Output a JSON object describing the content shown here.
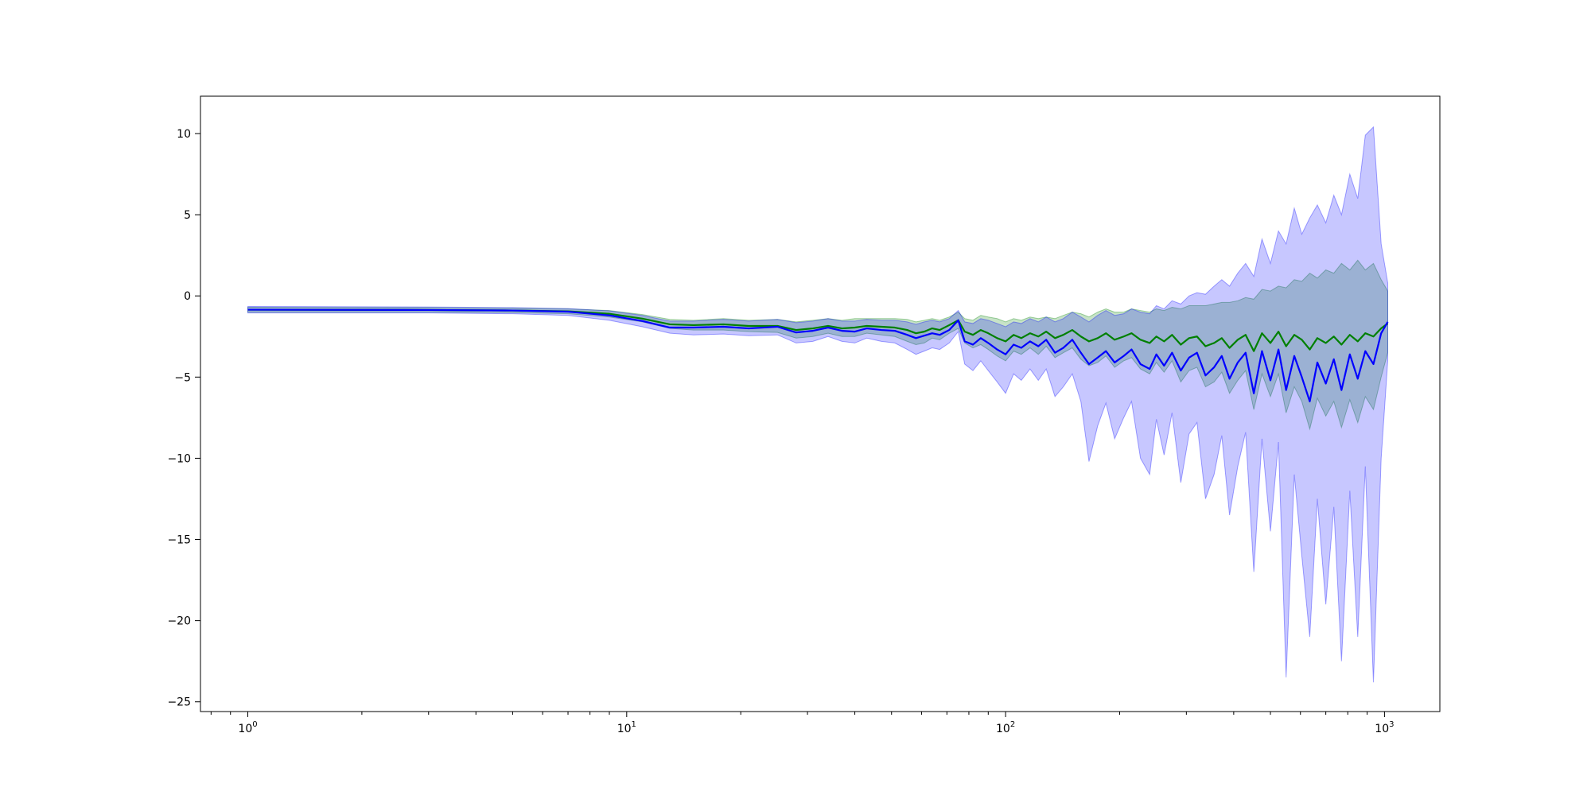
{
  "chart_data": {
    "type": "line",
    "title": "",
    "xlabel": "",
    "ylabel": "",
    "xscale": "log",
    "xlim": [
      0.75,
      1400
    ],
    "ylim": [
      -25.6,
      12.3
    ],
    "grid": false,
    "legend": "none",
    "x_ticks": [
      {
        "value": 1,
        "base": "10",
        "exp": "0"
      },
      {
        "value": 10,
        "base": "10",
        "exp": "1"
      },
      {
        "value": 100,
        "base": "10",
        "exp": "2"
      },
      {
        "value": 1000,
        "base": "10",
        "exp": "3"
      }
    ],
    "y_ticks": [
      {
        "value": 10,
        "label": "10"
      },
      {
        "value": 5,
        "label": "5"
      },
      {
        "value": 0,
        "label": "0"
      },
      {
        "value": -5,
        "label": "−5"
      },
      {
        "value": -10,
        "label": "−10"
      },
      {
        "value": -15,
        "label": "−15"
      },
      {
        "value": -20,
        "label": "−20"
      },
      {
        "value": -25,
        "label": "−25"
      }
    ],
    "x": [
      1,
      3,
      5,
      7,
      9,
      11,
      13,
      15,
      18,
      21,
      25,
      28,
      31,
      34,
      37,
      40,
      43,
      47,
      51,
      55,
      58,
      61,
      64,
      67,
      71,
      75,
      78,
      82,
      86,
      90,
      95,
      100,
      105,
      110,
      116,
      122,
      128,
      135,
      142,
      150,
      158,
      166,
      175,
      184,
      194,
      205,
      215,
      227,
      240,
      250,
      262,
      275,
      290,
      305,
      320,
      337,
      355,
      372,
      390,
      410,
      430,
      452,
      475,
      500,
      525,
      550,
      578,
      605,
      635,
      665,
      700,
      735,
      770,
      810,
      850,
      890,
      935,
      980,
      1020
    ],
    "series": [
      {
        "color": "#008000",
        "band_color": "#008000",
        "band_opacity": 0.22,
        "values": [
          -0.85,
          -0.87,
          -0.9,
          -0.95,
          -1.1,
          -1.4,
          -1.75,
          -1.8,
          -1.75,
          -1.85,
          -1.85,
          -2.1,
          -2.0,
          -1.85,
          -2.0,
          -1.95,
          -1.85,
          -1.9,
          -1.95,
          -2.1,
          -2.3,
          -2.2,
          -2.0,
          -2.1,
          -1.8,
          -1.5,
          -2.2,
          -2.4,
          -2.1,
          -2.3,
          -2.6,
          -2.8,
          -2.4,
          -2.6,
          -2.3,
          -2.5,
          -2.2,
          -2.6,
          -2.4,
          -2.1,
          -2.5,
          -2.8,
          -2.6,
          -2.3,
          -2.7,
          -2.5,
          -2.3,
          -2.7,
          -2.9,
          -2.5,
          -2.8,
          -2.4,
          -3.0,
          -2.6,
          -2.5,
          -3.1,
          -2.9,
          -2.6,
          -3.2,
          -2.7,
          -2.4,
          -3.4,
          -2.3,
          -2.9,
          -2.2,
          -3.1,
          -2.4,
          -2.7,
          -3.3,
          -2.6,
          -2.9,
          -2.5,
          -3.0,
          -2.4,
          -2.8,
          -2.3,
          -2.5,
          -2.0,
          -1.7
        ],
        "lower": [
          -1.0,
          -1.0,
          -1.03,
          -1.1,
          -1.3,
          -1.6,
          -2.0,
          -2.1,
          -2.1,
          -2.2,
          -2.25,
          -2.6,
          -2.5,
          -2.3,
          -2.5,
          -2.5,
          -2.3,
          -2.4,
          -2.5,
          -2.8,
          -3.0,
          -2.9,
          -2.6,
          -2.7,
          -2.3,
          -2.0,
          -2.9,
          -3.2,
          -3.0,
          -3.3,
          -3.7,
          -4.0,
          -3.4,
          -3.6,
          -3.2,
          -3.6,
          -3.1,
          -3.8,
          -3.5,
          -3.2,
          -3.9,
          -4.3,
          -4.1,
          -3.7,
          -4.4,
          -4.0,
          -3.8,
          -4.5,
          -4.8,
          -4.1,
          -4.7,
          -4.0,
          -5.3,
          -4.6,
          -4.4,
          -5.6,
          -5.3,
          -4.7,
          -6.0,
          -5.2,
          -4.6,
          -7.0,
          -4.8,
          -6.2,
          -4.8,
          -7.2,
          -5.6,
          -6.5,
          -8.2,
          -6.3,
          -7.4,
          -6.5,
          -8.1,
          -6.4,
          -7.8,
          -6.2,
          -7.0,
          -5.0,
          -3.5
        ],
        "upper": [
          -0.7,
          -0.72,
          -0.75,
          -0.8,
          -0.9,
          -1.15,
          -1.45,
          -1.5,
          -1.4,
          -1.5,
          -1.45,
          -1.6,
          -1.5,
          -1.4,
          -1.5,
          -1.4,
          -1.4,
          -1.4,
          -1.4,
          -1.45,
          -1.6,
          -1.5,
          -1.4,
          -1.5,
          -1.3,
          -1.0,
          -1.4,
          -1.5,
          -1.2,
          -1.3,
          -1.4,
          -1.6,
          -1.4,
          -1.5,
          -1.3,
          -1.4,
          -1.3,
          -1.4,
          -1.2,
          -1.0,
          -1.1,
          -1.3,
          -1.0,
          -0.8,
          -1.0,
          -1.0,
          -0.8,
          -0.9,
          -1.0,
          -0.8,
          -0.9,
          -0.7,
          -0.8,
          -0.6,
          -0.6,
          -0.6,
          -0.5,
          -0.4,
          -0.4,
          -0.3,
          -0.1,
          -0.2,
          0.4,
          0.3,
          0.6,
          0.5,
          1.0,
          0.9,
          1.4,
          1.1,
          1.6,
          1.4,
          2.0,
          1.6,
          2.2,
          1.6,
          2.0,
          1.0,
          0.3
        ]
      },
      {
        "color": "#0000ff",
        "band_color": "#0000ff",
        "band_opacity": 0.22,
        "values": [
          -0.85,
          -0.87,
          -0.9,
          -0.97,
          -1.2,
          -1.55,
          -1.95,
          -1.95,
          -1.9,
          -2.0,
          -1.9,
          -2.25,
          -2.15,
          -1.95,
          -2.15,
          -2.2,
          -2.0,
          -2.1,
          -2.15,
          -2.4,
          -2.6,
          -2.45,
          -2.3,
          -2.4,
          -2.1,
          -1.5,
          -2.8,
          -3.0,
          -2.6,
          -2.9,
          -3.3,
          -3.6,
          -3.0,
          -3.2,
          -2.8,
          -3.1,
          -2.7,
          -3.5,
          -3.2,
          -2.7,
          -3.5,
          -4.2,
          -3.8,
          -3.4,
          -4.1,
          -3.7,
          -3.3,
          -4.2,
          -4.5,
          -3.6,
          -4.3,
          -3.5,
          -4.6,
          -3.8,
          -3.5,
          -4.9,
          -4.4,
          -3.7,
          -5.1,
          -4.1,
          -3.5,
          -6.0,
          -3.4,
          -5.2,
          -3.3,
          -5.8,
          -3.7,
          -5.0,
          -6.5,
          -4.1,
          -5.4,
          -3.9,
          -5.8,
          -3.6,
          -5.1,
          -3.4,
          -4.2,
          -2.3,
          -1.6
        ],
        "lower": [
          -1.05,
          -1.05,
          -1.1,
          -1.2,
          -1.5,
          -1.9,
          -2.3,
          -2.4,
          -2.35,
          -2.45,
          -2.4,
          -2.9,
          -2.8,
          -2.5,
          -2.8,
          -2.9,
          -2.6,
          -2.8,
          -2.9,
          -3.3,
          -3.6,
          -3.4,
          -3.2,
          -3.3,
          -2.9,
          -2.2,
          -4.2,
          -4.6,
          -4.0,
          -4.6,
          -5.3,
          -6.0,
          -4.8,
          -5.2,
          -4.5,
          -5.2,
          -4.5,
          -6.2,
          -5.6,
          -4.8,
          -6.5,
          -10.2,
          -8.0,
          -6.6,
          -8.8,
          -7.5,
          -6.5,
          -10.0,
          -11.0,
          -7.6,
          -9.8,
          -7.2,
          -11.5,
          -8.5,
          -7.8,
          -12.5,
          -11.0,
          -8.6,
          -13.5,
          -10.5,
          -8.4,
          -17.0,
          -8.8,
          -14.5,
          -9.0,
          -23.5,
          -11.0,
          -16.0,
          -21.0,
          -12.5,
          -19.0,
          -13.0,
          -22.5,
          -12.0,
          -21.0,
          -10.5,
          -23.8,
          -10.0,
          -4.0
        ],
        "upper": [
          -0.65,
          -0.68,
          -0.72,
          -0.78,
          -0.92,
          -1.2,
          -1.55,
          -1.55,
          -1.45,
          -1.55,
          -1.45,
          -1.65,
          -1.55,
          -1.4,
          -1.55,
          -1.55,
          -1.45,
          -1.5,
          -1.5,
          -1.6,
          -1.75,
          -1.6,
          -1.5,
          -1.6,
          -1.4,
          -0.9,
          -1.6,
          -1.7,
          -1.4,
          -1.5,
          -1.7,
          -1.9,
          -1.6,
          -1.7,
          -1.4,
          -1.6,
          -1.3,
          -1.6,
          -1.4,
          -1.0,
          -1.3,
          -1.6,
          -1.2,
          -0.9,
          -1.2,
          -1.1,
          -0.8,
          -1.0,
          -1.1,
          -0.6,
          -0.8,
          -0.3,
          -0.5,
          0.0,
          0.2,
          0.1,
          0.6,
          1.0,
          0.6,
          1.4,
          2.0,
          1.2,
          3.5,
          2.0,
          4.0,
          3.2,
          5.4,
          3.8,
          4.8,
          5.6,
          4.5,
          6.2,
          5.0,
          7.5,
          6.0,
          9.9,
          10.4,
          3.2,
          0.8
        ]
      }
    ]
  }
}
